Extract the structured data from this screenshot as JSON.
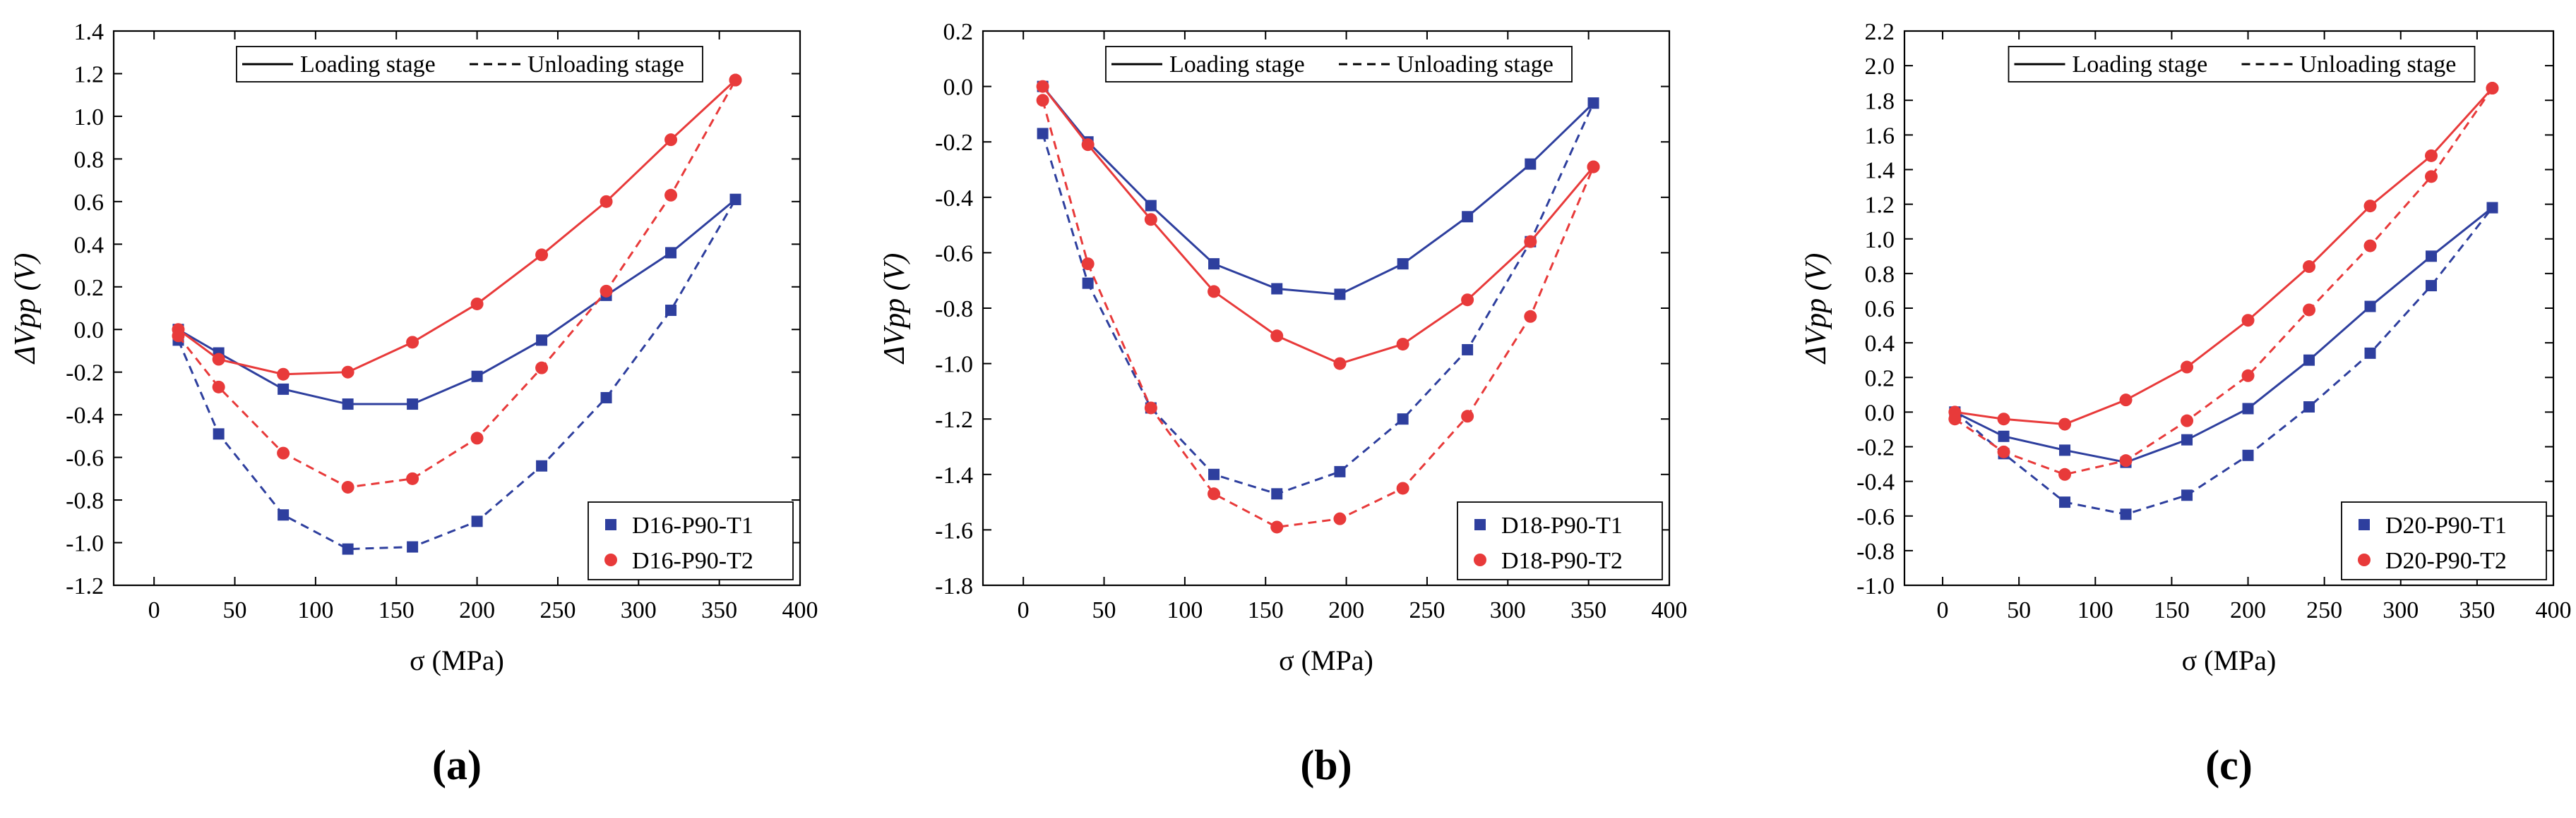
{
  "figure": {
    "colors": {
      "series1": "#2e3f9e",
      "series2": "#e83a3a",
      "axis": "#000000"
    },
    "legend_style": {
      "loading": "Loading stage",
      "unloading": "Unloading stage"
    }
  },
  "chart_data": [
    {
      "type": "line",
      "panel_label": "(a)",
      "xlabel": "σ (MPa)",
      "ylabel": "ΔVpp (V)",
      "xlim": [
        -25,
        400
      ],
      "ylim": [
        -1.2,
        1.4
      ],
      "xticks": [
        0,
        50,
        100,
        150,
        200,
        250,
        300,
        350,
        400
      ],
      "yticks": [
        -1.2,
        -1.0,
        -0.8,
        -0.6,
        -0.4,
        -0.2,
        0.0,
        0.2,
        0.4,
        0.6,
        0.8,
        1.0,
        1.2,
        1.4
      ],
      "ytick_labels": [
        "-1.2",
        "-1.0",
        "-0.8",
        "-0.6",
        "-0.4",
        "-0.2",
        "0.0",
        "0.2",
        "0.4",
        "0.6",
        "0.8",
        "1.0",
        "1.2",
        "1.4"
      ],
      "series": [
        {
          "name": "D16-P90-T1",
          "color": "#2e3f9e",
          "marker": "square",
          "loading": {
            "x": [
              15,
              40,
              80,
              120,
              160,
              200,
              240,
              280,
              320,
              360
            ],
            "y": [
              0.0,
              -0.11,
              -0.28,
              -0.35,
              -0.35,
              -0.22,
              -0.05,
              0.16,
              0.36,
              0.61
            ]
          },
          "unloading": {
            "x": [
              15,
              40,
              80,
              120,
              160,
              200,
              240,
              280,
              320,
              360
            ],
            "y": [
              -0.05,
              -0.49,
              -0.87,
              -1.03,
              -1.02,
              -0.9,
              -0.64,
              -0.32,
              0.09,
              0.61
            ]
          }
        },
        {
          "name": "D16-P90-T2",
          "color": "#e83a3a",
          "marker": "circle",
          "loading": {
            "x": [
              15,
              40,
              80,
              120,
              160,
              200,
              240,
              280,
              320,
              360
            ],
            "y": [
              0.0,
              -0.14,
              -0.21,
              -0.2,
              -0.06,
              0.12,
              0.35,
              0.6,
              0.89,
              1.17
            ]
          },
          "unloading": {
            "x": [
              15,
              40,
              80,
              120,
              160,
              200,
              240,
              280,
              320,
              360
            ],
            "y": [
              -0.03,
              -0.27,
              -0.58,
              -0.74,
              -0.7,
              -0.51,
              -0.18,
              0.18,
              0.63,
              1.17
            ]
          }
        }
      ]
    },
    {
      "type": "line",
      "panel_label": "(b)",
      "xlabel": "σ (MPa)",
      "ylabel": "ΔVpp (V)",
      "xlim": [
        -25,
        400
      ],
      "ylim": [
        -1.8,
        0.2
      ],
      "xticks": [
        0,
        50,
        100,
        150,
        200,
        250,
        300,
        350,
        400
      ],
      "yticks": [
        -1.8,
        -1.6,
        -1.4,
        -1.2,
        -1.0,
        -0.8,
        -0.6,
        -0.4,
        -0.2,
        0.0,
        0.2
      ],
      "ytick_labels": [
        "-1.8",
        "-1.6",
        "-1.4",
        "-1.2",
        "-1.0",
        "-0.8",
        "-0.6",
        "-0.4",
        "-0.2",
        "0.0",
        "0.2"
      ],
      "series": [
        {
          "name": "D18-P90-T1",
          "color": "#2e3f9e",
          "marker": "square",
          "loading": {
            "x": [
              12,
              40,
              79,
              118,
              157,
              196,
              235,
              275,
              314,
              353
            ],
            "y": [
              0.0,
              -0.2,
              -0.43,
              -0.64,
              -0.73,
              -0.75,
              -0.64,
              -0.47,
              -0.28,
              -0.06
            ]
          },
          "unloading": {
            "x": [
              12,
              40,
              79,
              118,
              157,
              196,
              235,
              275,
              314,
              353
            ],
            "y": [
              -0.17,
              -0.71,
              -1.16,
              -1.4,
              -1.47,
              -1.39,
              -1.2,
              -0.95,
              -0.56,
              -0.06
            ]
          }
        },
        {
          "name": "D18-P90-T2",
          "color": "#e83a3a",
          "marker": "circle",
          "loading": {
            "x": [
              12,
              40,
              79,
              118,
              157,
              196,
              235,
              275,
              314,
              353
            ],
            "y": [
              0.0,
              -0.21,
              -0.48,
              -0.74,
              -0.9,
              -1.0,
              -0.93,
              -0.77,
              -0.56,
              -0.29
            ]
          },
          "unloading": {
            "x": [
              12,
              40,
              79,
              118,
              157,
              196,
              235,
              275,
              314,
              353
            ],
            "y": [
              -0.05,
              -0.64,
              -1.16,
              -1.47,
              -1.59,
              -1.56,
              -1.45,
              -1.19,
              -0.83,
              -0.29
            ]
          }
        }
      ]
    },
    {
      "type": "line",
      "panel_label": "(c)",
      "xlabel": "σ (MPa)",
      "ylabel": "ΔVpp (V)",
      "xlim": [
        -25,
        400
      ],
      "ylim": [
        -1.0,
        2.2
      ],
      "xticks": [
        0,
        50,
        100,
        150,
        200,
        250,
        300,
        350,
        400
      ],
      "yticks": [
        -1.0,
        -0.8,
        -0.6,
        -0.4,
        -0.2,
        0.0,
        0.2,
        0.4,
        0.6,
        0.8,
        1.0,
        1.2,
        1.4,
        1.6,
        1.8,
        2.0,
        2.2
      ],
      "ytick_labels": [
        "-1.0",
        "-0.8",
        "-0.6",
        "-0.4",
        "-0.2",
        "0.0",
        "0.2",
        "0.4",
        "0.6",
        "0.8",
        "1.0",
        "1.2",
        "1.4",
        "1.6",
        "1.8",
        "2.0",
        "2.2"
      ],
      "series": [
        {
          "name": "D20-P90-T1",
          "color": "#2e3f9e",
          "marker": "square",
          "loading": {
            "x": [
              8,
              40,
              80,
              120,
              160,
              200,
              240,
              280,
              320,
              360
            ],
            "y": [
              0.0,
              -0.14,
              -0.22,
              -0.29,
              -0.16,
              0.02,
              0.3,
              0.61,
              0.9,
              1.18
            ]
          },
          "unloading": {
            "x": [
              8,
              40,
              80,
              120,
              160,
              200,
              240,
              280,
              320,
              360
            ],
            "y": [
              0.0,
              -0.24,
              -0.52,
              -0.59,
              -0.48,
              -0.25,
              0.03,
              0.34,
              0.73,
              1.18
            ]
          }
        },
        {
          "name": "D20-P90-T2",
          "color": "#e83a3a",
          "marker": "circle",
          "loading": {
            "x": [
              8,
              40,
              80,
              120,
              160,
              200,
              240,
              280,
              320,
              360
            ],
            "y": [
              0.0,
              -0.04,
              -0.07,
              0.07,
              0.26,
              0.53,
              0.84,
              1.19,
              1.48,
              1.87
            ]
          },
          "unloading": {
            "x": [
              8,
              40,
              80,
              120,
              160,
              200,
              240,
              280,
              320,
              360
            ],
            "y": [
              -0.04,
              -0.23,
              -0.36,
              -0.28,
              -0.05,
              0.21,
              0.59,
              0.96,
              1.36,
              1.87
            ]
          }
        }
      ]
    }
  ]
}
